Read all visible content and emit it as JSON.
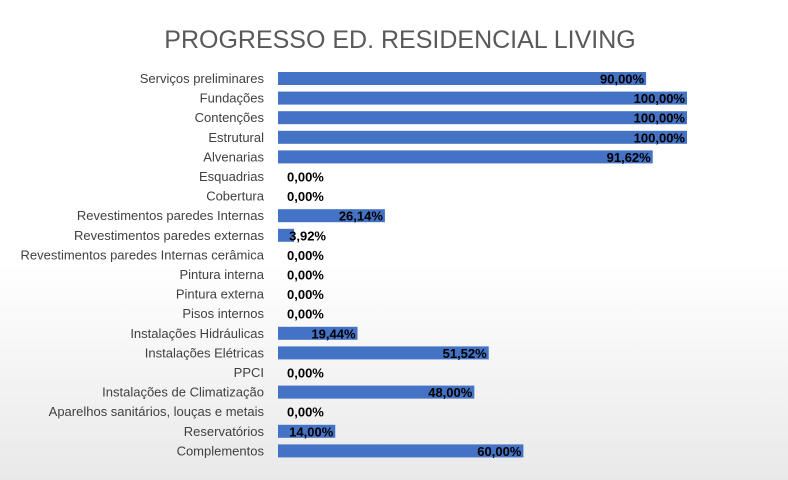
{
  "chart_data": {
    "type": "bar",
    "orientation": "horizontal",
    "title": "PROGRESSO ED. RESIDENCIAL LIVING",
    "categories": [
      "Serviços preliminares",
      "Fundações",
      "Contenções",
      "Estrutural",
      "Alvenarias",
      "Esquadrias",
      "Cobertura",
      "Revestimentos paredes Internas",
      "Revestimentos paredes externas",
      "Revestimentos paredes Internas cerâmica",
      "Pintura interna",
      "Pintura externa",
      "Pisos internos",
      "Instalações Hidráulicas",
      "Instalações Elétricas",
      "PPCI",
      "Instalações de Climatização",
      "Aparelhos sanitários, louças e metais",
      "Reservatórios",
      "Complementos"
    ],
    "values": [
      90.0,
      100.0,
      100.0,
      100.0,
      91.62,
      0.0,
      0.0,
      26.14,
      3.92,
      0.0,
      0.0,
      0.0,
      0.0,
      19.44,
      51.52,
      0.0,
      48.0,
      0.0,
      14.0,
      60.0
    ],
    "data_labels": [
      "90,00%",
      "100,00%",
      "100,00%",
      "100,00%",
      "91,62%",
      "0,00%",
      "0,00%",
      "26,14%",
      "3,92%",
      "0,00%",
      "0,00%",
      "0,00%",
      "0,00%",
      "19,44%",
      "51,52%",
      "0,00%",
      "48,00%",
      "0,00%",
      "14,00%",
      "60,00%"
    ],
    "xlim": [
      0,
      100
    ],
    "unit": "%",
    "grid": false,
    "legend": "none",
    "bar_color": "#4472c4"
  }
}
